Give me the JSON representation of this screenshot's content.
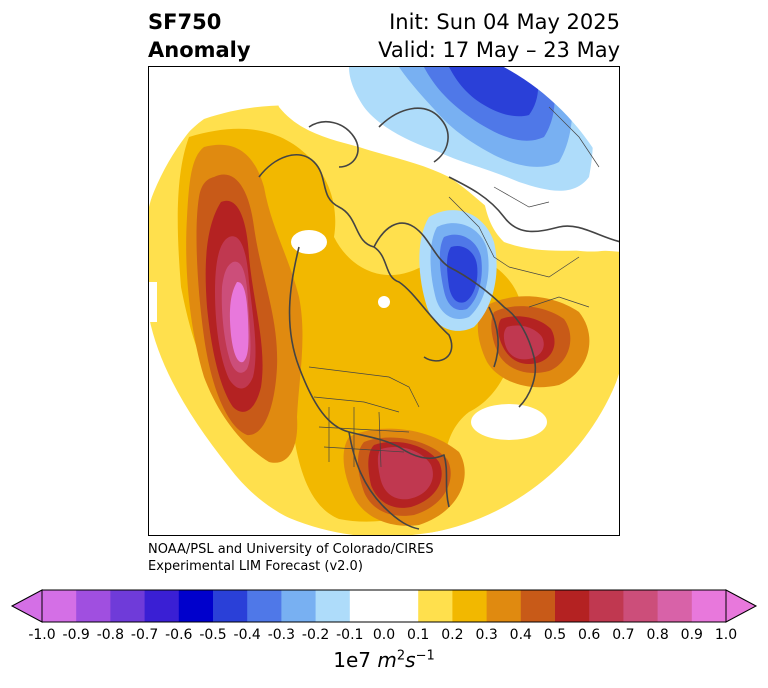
{
  "header": {
    "variable": "SF750",
    "kind": "Anomaly",
    "init": "Init: Sun 04 May 2025",
    "valid": "Valid: 17 May – 23 May"
  },
  "credit": {
    "line1": "NOAA/PSL and University of Colorado/CIRES",
    "line2": "Experimental LIM Forecast (v2.0)"
  },
  "colorbar": {
    "units_prefix": "1e7 ",
    "units_m": "m",
    "units_m_exp": "2",
    "units_s": "s",
    "units_s_exp": "−1",
    "ticks": [
      "-1.0",
      "-0.9",
      "-0.8",
      "-0.7",
      "-0.6",
      "-0.5",
      "-0.4",
      "-0.3",
      "-0.2",
      "-0.1",
      "0.0",
      "0.1",
      "0.2",
      "0.3",
      "0.4",
      "0.5",
      "0.6",
      "0.7",
      "0.8",
      "0.9",
      "1.0"
    ],
    "colors": [
      "#d46fe6",
      "#a04fe0",
      "#6f3bd9",
      "#3a1fd4",
      "#0000cc",
      "#2a40d8",
      "#4f78e8",
      "#78b0f2",
      "#aedcfa",
      "#ffffff",
      "#ffffff",
      "#ffe04d",
      "#f2b800",
      "#e08a10",
      "#c85a18",
      "#b42222",
      "#c03850",
      "#cc4e7a",
      "#d862a8",
      "#e878dc"
    ]
  }
}
